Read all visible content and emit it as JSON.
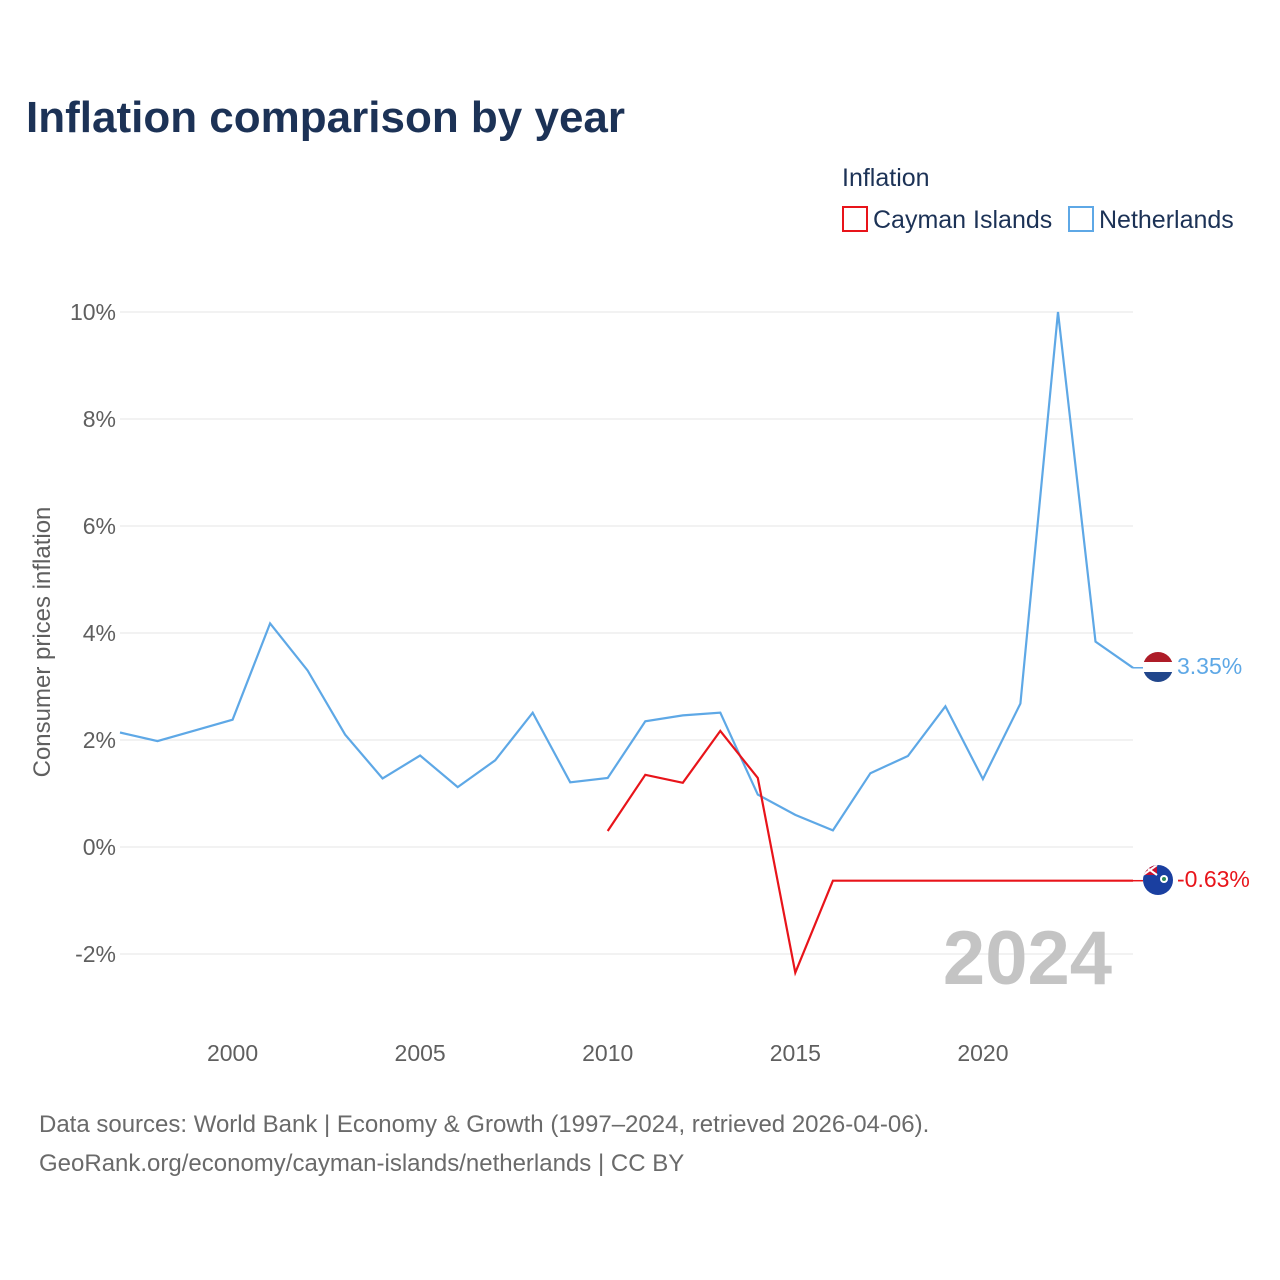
{
  "title": "Inflation comparison by year",
  "legend": {
    "title": "Inflation",
    "items": [
      {
        "label": "Cayman Islands",
        "color": "#e8141a"
      },
      {
        "label": "Netherlands",
        "color": "#5ea8e6"
      }
    ]
  },
  "axis": {
    "ylabel": "Consumer prices inflation"
  },
  "current_year": "2024",
  "end_labels": {
    "netherlands": "3.35%",
    "cayman": "-0.63%"
  },
  "source": {
    "line1": "Data sources: World Bank | Economy & Growth (1997–2024, retrieved 2026-04-06).",
    "line2": "GeoRank.org/economy/cayman-islands/netherlands | CC BY"
  },
  "chart_data": {
    "type": "line",
    "title": "Inflation comparison by year",
    "xlabel": "",
    "ylabel": "Consumer prices inflation",
    "xlim": [
      1997,
      2024
    ],
    "ylim": [
      -2.8,
      10
    ],
    "x_ticks": [
      2000,
      2005,
      2010,
      2015,
      2020
    ],
    "y_ticks": [
      -2,
      0,
      2,
      4,
      6,
      8,
      10
    ],
    "y_tick_labels": [
      "-2%",
      "0%",
      "2%",
      "4%",
      "6%",
      "8%",
      "10%"
    ],
    "grid": true,
    "legend_position": "top-right",
    "series": [
      {
        "name": "Netherlands",
        "color": "#5ea8e6",
        "x": [
          1997,
          1998,
          1999,
          2000,
          2001,
          2002,
          2003,
          2004,
          2005,
          2006,
          2007,
          2008,
          2009,
          2010,
          2011,
          2012,
          2013,
          2014,
          2015,
          2016,
          2017,
          2018,
          2019,
          2020,
          2021,
          2022,
          2023,
          2024
        ],
        "values": [
          2.14,
          1.98,
          2.18,
          2.38,
          4.18,
          3.3,
          2.1,
          1.28,
          1.71,
          1.12,
          1.62,
          2.51,
          1.21,
          1.29,
          2.35,
          2.46,
          2.51,
          0.98,
          0.6,
          0.31,
          1.38,
          1.7,
          2.63,
          1.27,
          2.68,
          10.0,
          3.84,
          3.35
        ]
      },
      {
        "name": "Cayman Islands",
        "color": "#e8141a",
        "x": [
          2010,
          2011,
          2012,
          2013,
          2014,
          2015,
          2016,
          2017,
          2018,
          2019,
          2020,
          2021,
          2022,
          2023,
          2024
        ],
        "values": [
          0.3,
          1.35,
          1.2,
          2.17,
          1.29,
          -2.35,
          -0.63,
          -0.63,
          -0.63,
          -0.63,
          -0.63,
          -0.63,
          -0.63,
          -0.63,
          -0.63
        ]
      }
    ]
  }
}
